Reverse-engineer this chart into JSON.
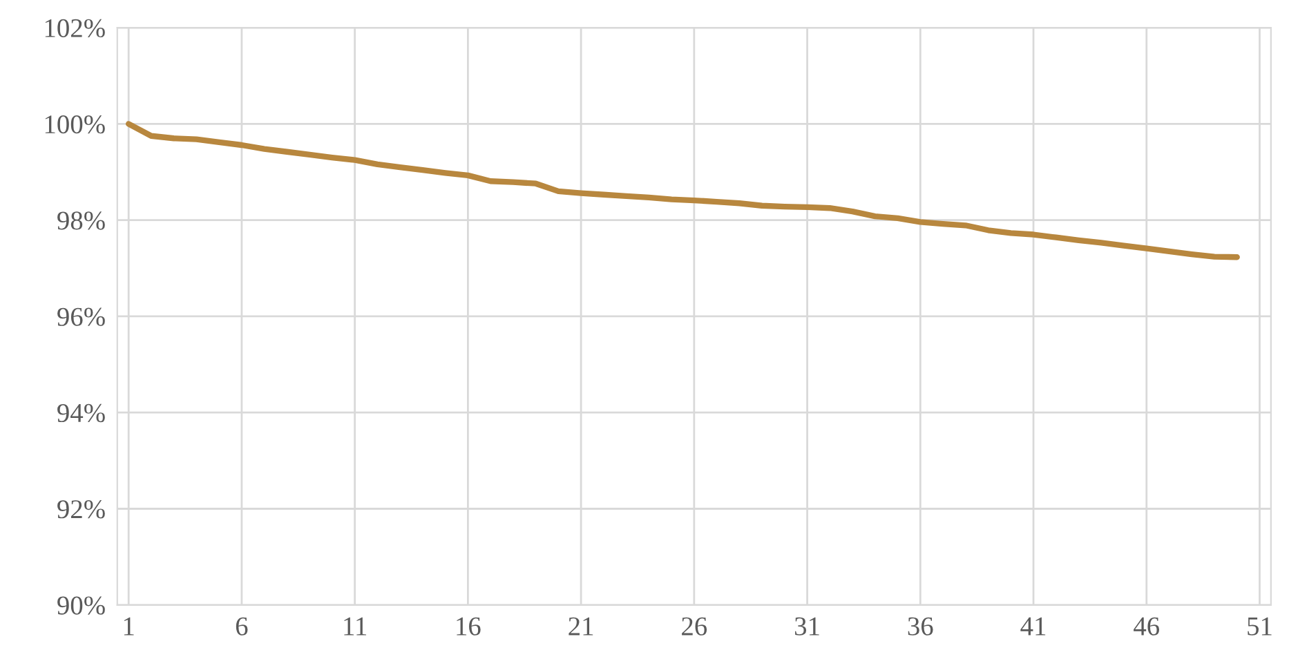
{
  "chart_data": {
    "type": "line",
    "x": [
      1,
      2,
      3,
      4,
      5,
      6,
      7,
      8,
      9,
      10,
      11,
      12,
      13,
      14,
      15,
      16,
      17,
      18,
      19,
      20,
      21,
      22,
      23,
      24,
      25,
      26,
      27,
      28,
      29,
      30,
      31,
      32,
      33,
      34,
      35,
      36,
      37,
      38,
      39,
      40,
      41,
      42,
      43,
      44,
      45,
      46,
      47,
      48,
      49,
      50
    ],
    "series": [
      {
        "color": "#b8873e",
        "values": [
          100.0,
          99.75,
          99.7,
          99.68,
          99.62,
          99.56,
          99.48,
          99.42,
          99.36,
          99.3,
          99.25,
          99.16,
          99.1,
          99.04,
          98.98,
          98.93,
          98.81,
          98.79,
          98.76,
          98.6,
          98.56,
          98.53,
          98.5,
          98.47,
          98.43,
          98.41,
          98.38,
          98.35,
          98.3,
          98.28,
          98.27,
          98.25,
          98.18,
          98.08,
          98.04,
          97.96,
          97.92,
          97.89,
          97.79,
          97.73,
          97.7,
          97.64,
          97.58,
          97.53,
          97.47,
          97.41,
          97.35,
          97.29,
          97.24,
          97.23
        ]
      }
    ],
    "xlim": [
      0.5,
      51.5
    ],
    "xticks": [
      1,
      6,
      11,
      16,
      21,
      26,
      31,
      36,
      41,
      46,
      51
    ],
    "ylim": [
      90,
      102
    ],
    "yticks": [
      {
        "value": 90,
        "label": "90%"
      },
      {
        "value": 92,
        "label": "92%"
      },
      {
        "value": 94,
        "label": "94%"
      },
      {
        "value": 96,
        "label": "96%"
      },
      {
        "value": 98,
        "label": "98%"
      },
      {
        "value": 100,
        "label": "100%"
      },
      {
        "value": 102,
        "label": "102%"
      }
    ],
    "grid": true,
    "marker": "none",
    "line_style": "solid"
  }
}
